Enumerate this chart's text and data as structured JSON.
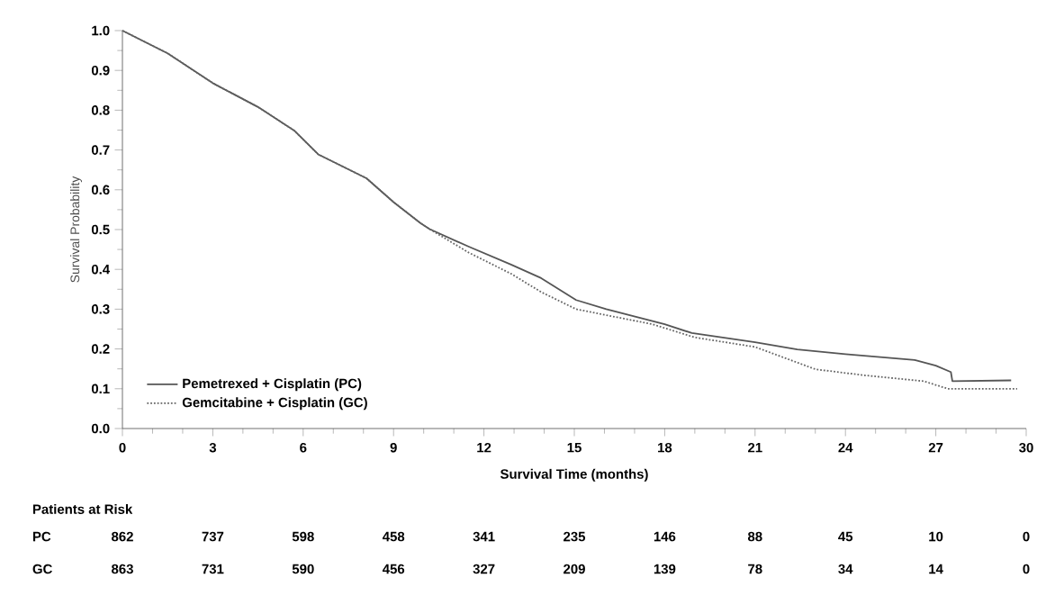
{
  "chart_data": [
    {
      "type": "line",
      "xlabel": "Survival Time (months)",
      "ylabel": "Survival Probability",
      "xlim": [
        0,
        30
      ],
      "xticks": [
        0,
        3,
        6,
        9,
        12,
        15,
        18,
        21,
        24,
        27,
        30
      ],
      "ylim": [
        0,
        1
      ],
      "yticks": [
        {
          "value": 0,
          "label": "0.0"
        },
        {
          "value": 0.1,
          "label": "0.1"
        },
        {
          "value": 0.2,
          "label": "0.2"
        },
        {
          "value": 0.3,
          "label": "0.3"
        },
        {
          "value": 0.4,
          "label": "0.4"
        },
        {
          "value": 0.5,
          "label": "0.5"
        },
        {
          "value": 0.6,
          "label": "0.6"
        },
        {
          "value": 0.7,
          "label": "0.7"
        },
        {
          "value": 0.8,
          "label": "0.8"
        },
        {
          "value": 0.9,
          "label": "0.9"
        },
        {
          "value": 1,
          "label": "1.0"
        }
      ],
      "grid": false,
      "legend": "bottom left",
      "marker": "none",
      "series": [
        {
          "name": "Pemetrexed + Cisplatin (PC)",
          "color": "#555555",
          "line_style": "solid",
          "x": [
            0,
            1.5,
            3,
            4.5,
            5.7,
            6.5,
            8.1,
            9,
            9.9,
            10.2,
            11.5,
            12.9,
            13.9,
            15.06,
            16.06,
            18,
            18.9,
            21,
            22.4,
            24,
            26.3,
            27,
            27.5,
            27.55,
            29.5
          ],
          "values": [
            1,
            0.943,
            0.868,
            0.808,
            0.749,
            0.689,
            0.629,
            0.569,
            0.516,
            0.501,
            0.457,
            0.412,
            0.378,
            0.323,
            0.3,
            0.262,
            0.24,
            0.217,
            0.199,
            0.187,
            0.172,
            0.158,
            0.142,
            0.119,
            0.121
          ]
        },
        {
          "name": "Gemcitabine + Cisplatin (GC)",
          "color": "#666666",
          "line_style": "dotted",
          "x": [
            0,
            1.5,
            3,
            4.5,
            5.7,
            6.5,
            8.1,
            9,
            9.9,
            10.2,
            11.5,
            12.9,
            13.9,
            15.06,
            16.06,
            17.6,
            19,
            21,
            23,
            24.6,
            26.6,
            27.4,
            29.7
          ],
          "values": [
            1,
            0.943,
            0.868,
            0.808,
            0.749,
            0.689,
            0.629,
            0.569,
            0.516,
            0.501,
            0.442,
            0.389,
            0.343,
            0.3,
            0.285,
            0.262,
            0.229,
            0.205,
            0.149,
            0.134,
            0.119,
            0.1,
            0.1
          ]
        }
      ]
    },
    {
      "type": "other",
      "title": "Patients at Risk",
      "annotations": [
        "PC",
        "862",
        "737",
        "598",
        "458",
        "341",
        "235",
        "146",
        "88",
        "45",
        "10",
        "0",
        "GC",
        "863",
        "731",
        "590",
        "456",
        "327",
        "209",
        "139",
        "78",
        "34",
        "14",
        "0"
      ]
    }
  ]
}
